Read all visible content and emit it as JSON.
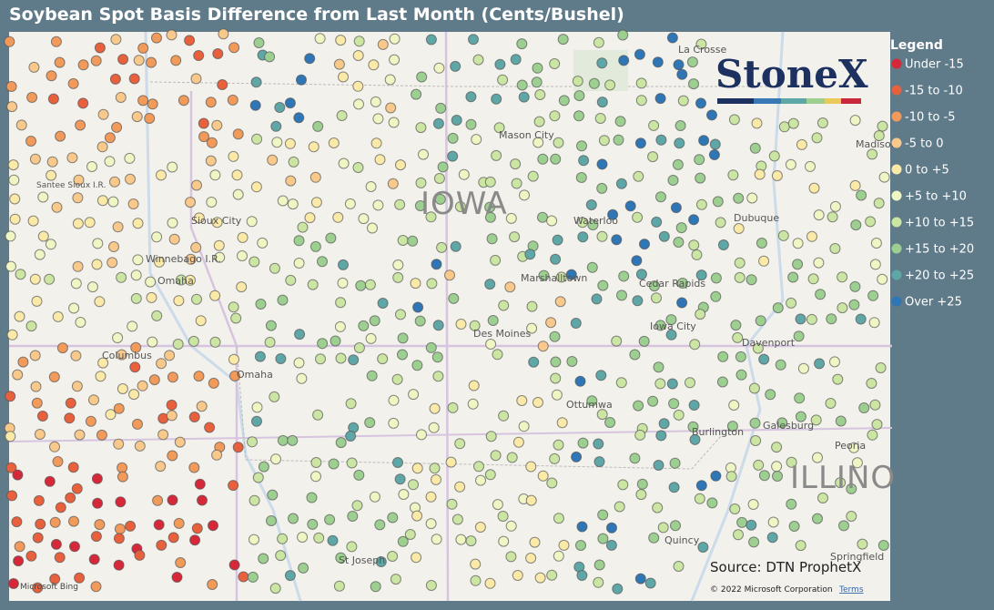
{
  "header": {
    "title": "Soybean Spot Basis Difference from Last Month (Cents/Bushel)"
  },
  "legend": {
    "title": "Legend",
    "items": [
      {
        "label": "Under -15",
        "color": "#d7283a"
      },
      {
        "label": "-15 to -10",
        "color": "#e8603c"
      },
      {
        "label": "-10 to -5",
        "color": "#f19a5a"
      },
      {
        "label": "-5 to 0",
        "color": "#f8c98b"
      },
      {
        "label": "0 to +5",
        "color": "#fbe9a8"
      },
      {
        "label": "+5 to +10",
        "color": "#f0f6c3"
      },
      {
        "label": "+10 to +15",
        "color": "#cbe5a2"
      },
      {
        "label": "+15 to +20",
        "color": "#9ccf90"
      },
      {
        "label": "+20 to +25",
        "color": "#5fa6a7"
      },
      {
        "label": "Over +25",
        "color": "#2e76b5"
      }
    ]
  },
  "map": {
    "labels": [
      "IOWA",
      "ILLINO",
      "La Crosse",
      "Mason City",
      "Waterloo",
      "Dubuque",
      "Sioux City",
      "Winnebago I.R.",
      "Omaha",
      "Omaha",
      "Marshalltown",
      "Cedar Rapids",
      "Des Moines",
      "Iowa City",
      "Davenport",
      "Ottumwa",
      "Columbus",
      "Burlington",
      "Galesburg",
      "Peoria",
      "Springfield",
      "Quincy",
      "St Joseph",
      "Madison",
      "Santee Sioux I.R."
    ],
    "logo": "StoneX",
    "source": "Source: DTN ProphetX",
    "copyright": "© 2022 Microsoft Corporation",
    "terms": "Terms",
    "provider": "Microsoft Bing"
  }
}
